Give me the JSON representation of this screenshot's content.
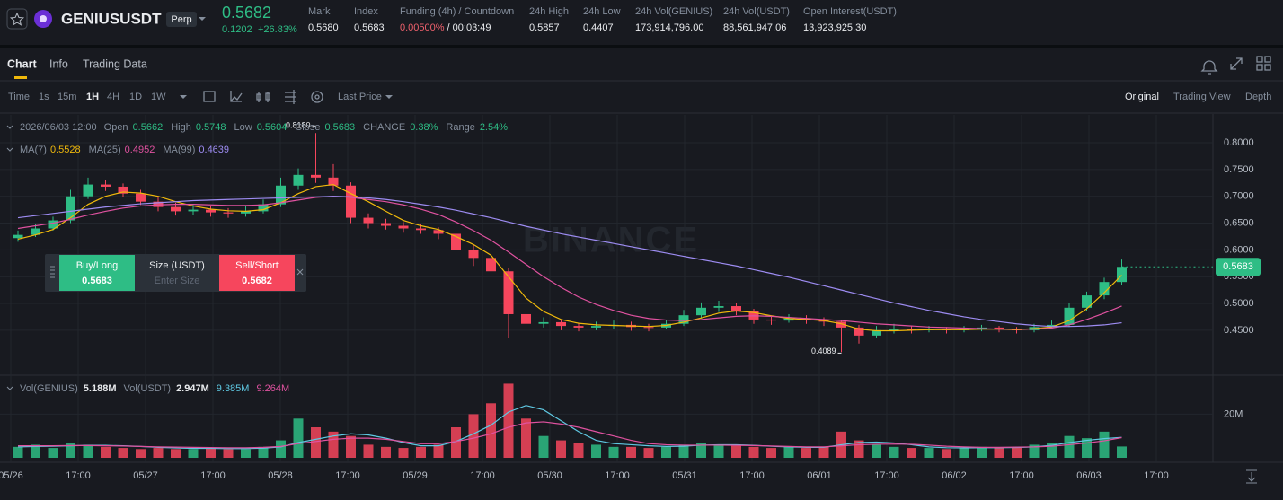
{
  "header": {
    "symbol": "GENIUSUSDT",
    "badge": "Perp",
    "price": "0.5682",
    "change": "0.1202",
    "change_pct": "+26.83%",
    "stats": [
      {
        "label": "Mark",
        "value": "0.5680"
      },
      {
        "label": "Index",
        "value": "0.5683"
      },
      {
        "label": "Funding (4h) / Countdown",
        "value": "0.00500%",
        "extra": "/ 00:03:49"
      },
      {
        "label": "24h High",
        "value": "0.5857"
      },
      {
        "label": "24h Low",
        "value": "0.4407"
      },
      {
        "label": "24h Vol(GENIUS)",
        "value": "173,914,796.00"
      },
      {
        "label": "24h Vol(USDT)",
        "value": "88,561,947.06"
      },
      {
        "label": "Open Interest(USDT)",
        "value": "13,923,925.30"
      }
    ]
  },
  "tabs": [
    "Chart",
    "Info",
    "Trading Data"
  ],
  "toolbar": {
    "time": "Time",
    "intervals": [
      "1s",
      "15m",
      "1H",
      "4H",
      "1D",
      "1W"
    ],
    "price_type": "Last Price",
    "views": [
      "Original",
      "Trading View",
      "Depth"
    ]
  },
  "trade": {
    "buy_label": "Buy/Long",
    "buy_price": "0.5683",
    "size_label": "Size (USDT)",
    "size_placeholder": "Enter Size",
    "sell_label": "Sell/Short",
    "sell_price": "0.5682"
  },
  "chart_data": {
    "type": "candlestick",
    "watermark": "BINANCE",
    "legend": {
      "date": "2026/06/03 12:00",
      "items": [
        {
          "label": "Open",
          "value": "0.5662"
        },
        {
          "label": "High",
          "value": "0.5748"
        },
        {
          "label": "Low",
          "value": "0.5604"
        },
        {
          "label": "Close",
          "value": "0.5683"
        },
        {
          "label": "CHANGE",
          "value": "0.38%"
        },
        {
          "label": "Range",
          "value": "2.54%"
        }
      ]
    },
    "up_color": "#2ebd85",
    "down_color": "#f6465d",
    "ylim": [
      0.366,
      0.852
    ],
    "yticks": [
      {
        "value": 0.45,
        "label": "0.4500"
      },
      {
        "value": 0.5,
        "label": "0.5000"
      },
      {
        "value": 0.55,
        "label": "0.5500"
      },
      {
        "value": 0.6,
        "label": "0.6000"
      },
      {
        "value": 0.65,
        "label": "0.6500"
      },
      {
        "value": 0.7,
        "label": "0.7000"
      },
      {
        "value": 0.75,
        "label": "0.7500"
      },
      {
        "value": 0.8,
        "label": "0.8000"
      }
    ],
    "last_price_label": "0.5683",
    "high_label": "0.8180",
    "low_label": "0.4089",
    "xtick_labels": [
      "05/26",
      "17:00",
      "05/27",
      "17:00",
      "05/28",
      "17:00",
      "05/29",
      "17:00",
      "05/30",
      "17:00",
      "05/31",
      "17:00",
      "06/01",
      "17:00",
      "06/02",
      "17:00",
      "06/03",
      "17:00"
    ],
    "ohlc": [
      [
        0.622,
        0.636,
        0.615,
        0.628
      ],
      [
        0.628,
        0.648,
        0.624,
        0.64
      ],
      [
        0.64,
        0.662,
        0.636,
        0.655
      ],
      [
        0.655,
        0.712,
        0.65,
        0.7
      ],
      [
        0.7,
        0.735,
        0.695,
        0.722
      ],
      [
        0.722,
        0.73,
        0.71,
        0.718
      ],
      [
        0.718,
        0.724,
        0.698,
        0.705
      ],
      [
        0.705,
        0.712,
        0.684,
        0.69
      ],
      [
        0.69,
        0.698,
        0.672,
        0.68
      ],
      [
        0.68,
        0.688,
        0.664,
        0.672
      ],
      [
        0.672,
        0.684,
        0.666,
        0.675
      ],
      [
        0.675,
        0.682,
        0.662,
        0.67
      ],
      [
        0.67,
        0.678,
        0.66,
        0.668
      ],
      [
        0.668,
        0.682,
        0.662,
        0.672
      ],
      [
        0.672,
        0.694,
        0.668,
        0.685
      ],
      [
        0.685,
        0.735,
        0.68,
        0.72
      ],
      [
        0.72,
        0.752,
        0.712,
        0.74
      ],
      [
        0.74,
        0.818,
        0.725,
        0.735
      ],
      [
        0.735,
        0.76,
        0.71,
        0.72
      ],
      [
        0.72,
        0.726,
        0.65,
        0.66
      ],
      [
        0.66,
        0.668,
        0.64,
        0.65
      ],
      [
        0.65,
        0.658,
        0.638,
        0.645
      ],
      [
        0.645,
        0.652,
        0.632,
        0.64
      ],
      [
        0.64,
        0.648,
        0.63,
        0.637
      ],
      [
        0.637,
        0.642,
        0.62,
        0.63
      ],
      [
        0.63,
        0.636,
        0.59,
        0.6
      ],
      [
        0.6,
        0.61,
        0.57,
        0.585
      ],
      [
        0.585,
        0.592,
        0.54,
        0.56
      ],
      [
        0.56,
        0.566,
        0.435,
        0.48
      ],
      [
        0.48,
        0.49,
        0.448,
        0.462
      ],
      [
        0.462,
        0.474,
        0.455,
        0.465
      ],
      [
        0.465,
        0.47,
        0.45,
        0.458
      ],
      [
        0.458,
        0.464,
        0.448,
        0.455
      ],
      [
        0.455,
        0.466,
        0.45,
        0.458
      ],
      [
        0.458,
        0.468,
        0.452,
        0.46
      ],
      [
        0.46,
        0.466,
        0.449,
        0.456
      ],
      [
        0.456,
        0.462,
        0.448,
        0.455
      ],
      [
        0.455,
        0.47,
        0.452,
        0.462
      ],
      [
        0.462,
        0.488,
        0.458,
        0.478
      ],
      [
        0.478,
        0.502,
        0.472,
        0.492
      ],
      [
        0.492,
        0.505,
        0.484,
        0.495
      ],
      [
        0.495,
        0.5,
        0.478,
        0.485
      ],
      [
        0.485,
        0.49,
        0.462,
        0.47
      ],
      [
        0.47,
        0.476,
        0.46,
        0.468
      ],
      [
        0.468,
        0.48,
        0.464,
        0.472
      ],
      [
        0.472,
        0.478,
        0.462,
        0.47
      ],
      [
        0.47,
        0.474,
        0.458,
        0.466
      ],
      [
        0.466,
        0.47,
        0.4089,
        0.455
      ],
      [
        0.455,
        0.46,
        0.425,
        0.44
      ],
      [
        0.44,
        0.458,
        0.436,
        0.45
      ],
      [
        0.45,
        0.462,
        0.444,
        0.452
      ],
      [
        0.452,
        0.458,
        0.444,
        0.45
      ],
      [
        0.45,
        0.458,
        0.446,
        0.452
      ],
      [
        0.452,
        0.456,
        0.444,
        0.45
      ],
      [
        0.45,
        0.458,
        0.446,
        0.452
      ],
      [
        0.452,
        0.46,
        0.448,
        0.455
      ],
      [
        0.455,
        0.458,
        0.446,
        0.452
      ],
      [
        0.452,
        0.456,
        0.444,
        0.45
      ],
      [
        0.45,
        0.462,
        0.446,
        0.456
      ],
      [
        0.456,
        0.468,
        0.452,
        0.46
      ],
      [
        0.46,
        0.5,
        0.456,
        0.492
      ],
      [
        0.492,
        0.522,
        0.486,
        0.515
      ],
      [
        0.515,
        0.548,
        0.508,
        0.54
      ],
      [
        0.54,
        0.582,
        0.534,
        0.5683
      ]
    ],
    "ma": [
      {
        "name": "MA(7)",
        "current": "0.5528",
        "color": "#f0b90b",
        "values": [
          0.62,
          0.628,
          0.638,
          0.66,
          0.685,
          0.7,
          0.708,
          0.706,
          0.7,
          0.69,
          0.682,
          0.676,
          0.673,
          0.672,
          0.675,
          0.688,
          0.705,
          0.718,
          0.722,
          0.705,
          0.69,
          0.672,
          0.655,
          0.645,
          0.638,
          0.625,
          0.61,
          0.59,
          0.55,
          0.51,
          0.485,
          0.47,
          0.463,
          0.46,
          0.459,
          0.458,
          0.457,
          0.459,
          0.465,
          0.473,
          0.482,
          0.486,
          0.483,
          0.477,
          0.472,
          0.47,
          0.468,
          0.462,
          0.452,
          0.449,
          0.449,
          0.45,
          0.451,
          0.451,
          0.451,
          0.452,
          0.452,
          0.451,
          0.453,
          0.456,
          0.468,
          0.49,
          0.52,
          0.5528
        ]
      },
      {
        "name": "MA(25)",
        "current": "0.4952",
        "color": "#e052a0",
        "values": [
          0.64,
          0.645,
          0.65,
          0.657,
          0.665,
          0.672,
          0.678,
          0.682,
          0.684,
          0.685,
          0.685,
          0.684,
          0.683,
          0.683,
          0.684,
          0.688,
          0.693,
          0.698,
          0.7,
          0.698,
          0.694,
          0.69,
          0.684,
          0.676,
          0.666,
          0.652,
          0.636,
          0.618,
          0.596,
          0.573,
          0.55,
          0.53,
          0.512,
          0.498,
          0.487,
          0.478,
          0.472,
          0.469,
          0.468,
          0.47,
          0.473,
          0.476,
          0.477,
          0.476,
          0.474,
          0.472,
          0.47,
          0.468,
          0.465,
          0.462,
          0.46,
          0.458,
          0.456,
          0.455,
          0.454,
          0.453,
          0.452,
          0.452,
          0.452,
          0.454,
          0.46,
          0.47,
          0.482,
          0.4952
        ]
      },
      {
        "name": "MA(99)",
        "current": "0.4639",
        "color": "#9d8cf2",
        "values": [
          0.66,
          0.664,
          0.668,
          0.672,
          0.676,
          0.68,
          0.683,
          0.686,
          0.688,
          0.69,
          0.692,
          0.693,
          0.694,
          0.695,
          0.696,
          0.697,
          0.698,
          0.699,
          0.7,
          0.699,
          0.697,
          0.694,
          0.69,
          0.685,
          0.68,
          0.674,
          0.667,
          0.66,
          0.652,
          0.644,
          0.637,
          0.63,
          0.624,
          0.618,
          0.612,
          0.606,
          0.6,
          0.594,
          0.588,
          0.582,
          0.576,
          0.57,
          0.563,
          0.556,
          0.549,
          0.541,
          0.533,
          0.525,
          0.517,
          0.509,
          0.501,
          0.494,
          0.487,
          0.481,
          0.475,
          0.47,
          0.466,
          0.462,
          0.459,
          0.457,
          0.457,
          0.458,
          0.46,
          0.4639
        ]
      }
    ],
    "volume": {
      "name": "Vol(GENIUS)",
      "current": "5.188M",
      "values": [
        5,
        6,
        4.5,
        7,
        6,
        5,
        4.5,
        4,
        4.5,
        4,
        4,
        4.5,
        4,
        4,
        5,
        8,
        18,
        14,
        12,
        10,
        6,
        5,
        4.5,
        5,
        6,
        14,
        20,
        25,
        34,
        18,
        10,
        8,
        7,
        6,
        5,
        5,
        4.5,
        5,
        6,
        7,
        6,
        5.5,
        5,
        4.5,
        5,
        4.5,
        5,
        12,
        8,
        6,
        5,
        4.5,
        4.5,
        4,
        4.5,
        5,
        4.5,
        5,
        6,
        7,
        10,
        9,
        12,
        5.188
      ]
    },
    "volume_usdt": {
      "name": "Vol(USDT)",
      "current": "2.947M"
    },
    "vlim": [
      0,
      35
    ],
    "vticks": [
      {
        "value": 20,
        "label": "20M"
      }
    ],
    "volume_ma": [
      {
        "current": "9.385M",
        "color": "#5fc9e3",
        "values": [
          5,
          5.2,
          5.3,
          5.5,
          5.7,
          5.7,
          5.5,
          5.2,
          4.8,
          4.5,
          4.3,
          4.3,
          4.2,
          4.2,
          4.4,
          5,
          7,
          8.5,
          10,
          11,
          10.5,
          9,
          7,
          5.5,
          5.5,
          7.5,
          11,
          15,
          21,
          24,
          22,
          17,
          12,
          8,
          6.5,
          6,
          5.5,
          5.2,
          5.3,
          5.8,
          6,
          6,
          5.7,
          5.3,
          5,
          4.8,
          4.8,
          6,
          7,
          7.2,
          6.8,
          6,
          5,
          4.6,
          4.5,
          4.6,
          4.6,
          4.7,
          5,
          5.7,
          7,
          8,
          8.8,
          9.385
        ]
      },
      {
        "current": "9.264M",
        "color": "#e052a0",
        "values": [
          5.5,
          5.5,
          5.5,
          5.6,
          5.6,
          5.5,
          5.4,
          5.2,
          5,
          4.9,
          4.8,
          4.7,
          4.6,
          4.6,
          4.8,
          5.2,
          6.5,
          7.5,
          8.5,
          9,
          9,
          8.5,
          7.5,
          6.5,
          6.5,
          7.5,
          9,
          11,
          14,
          16,
          16.5,
          15.5,
          14,
          12,
          10,
          8,
          6.5,
          6,
          5.8,
          5.8,
          5.8,
          5.7,
          5.6,
          5.4,
          5.2,
          5,
          5,
          5.5,
          6,
          6.2,
          6.3,
          6.2,
          5.8,
          5.3,
          5,
          4.8,
          4.8,
          4.9,
          5,
          5.3,
          6,
          6.8,
          7.8,
          9.264
        ]
      }
    ]
  }
}
